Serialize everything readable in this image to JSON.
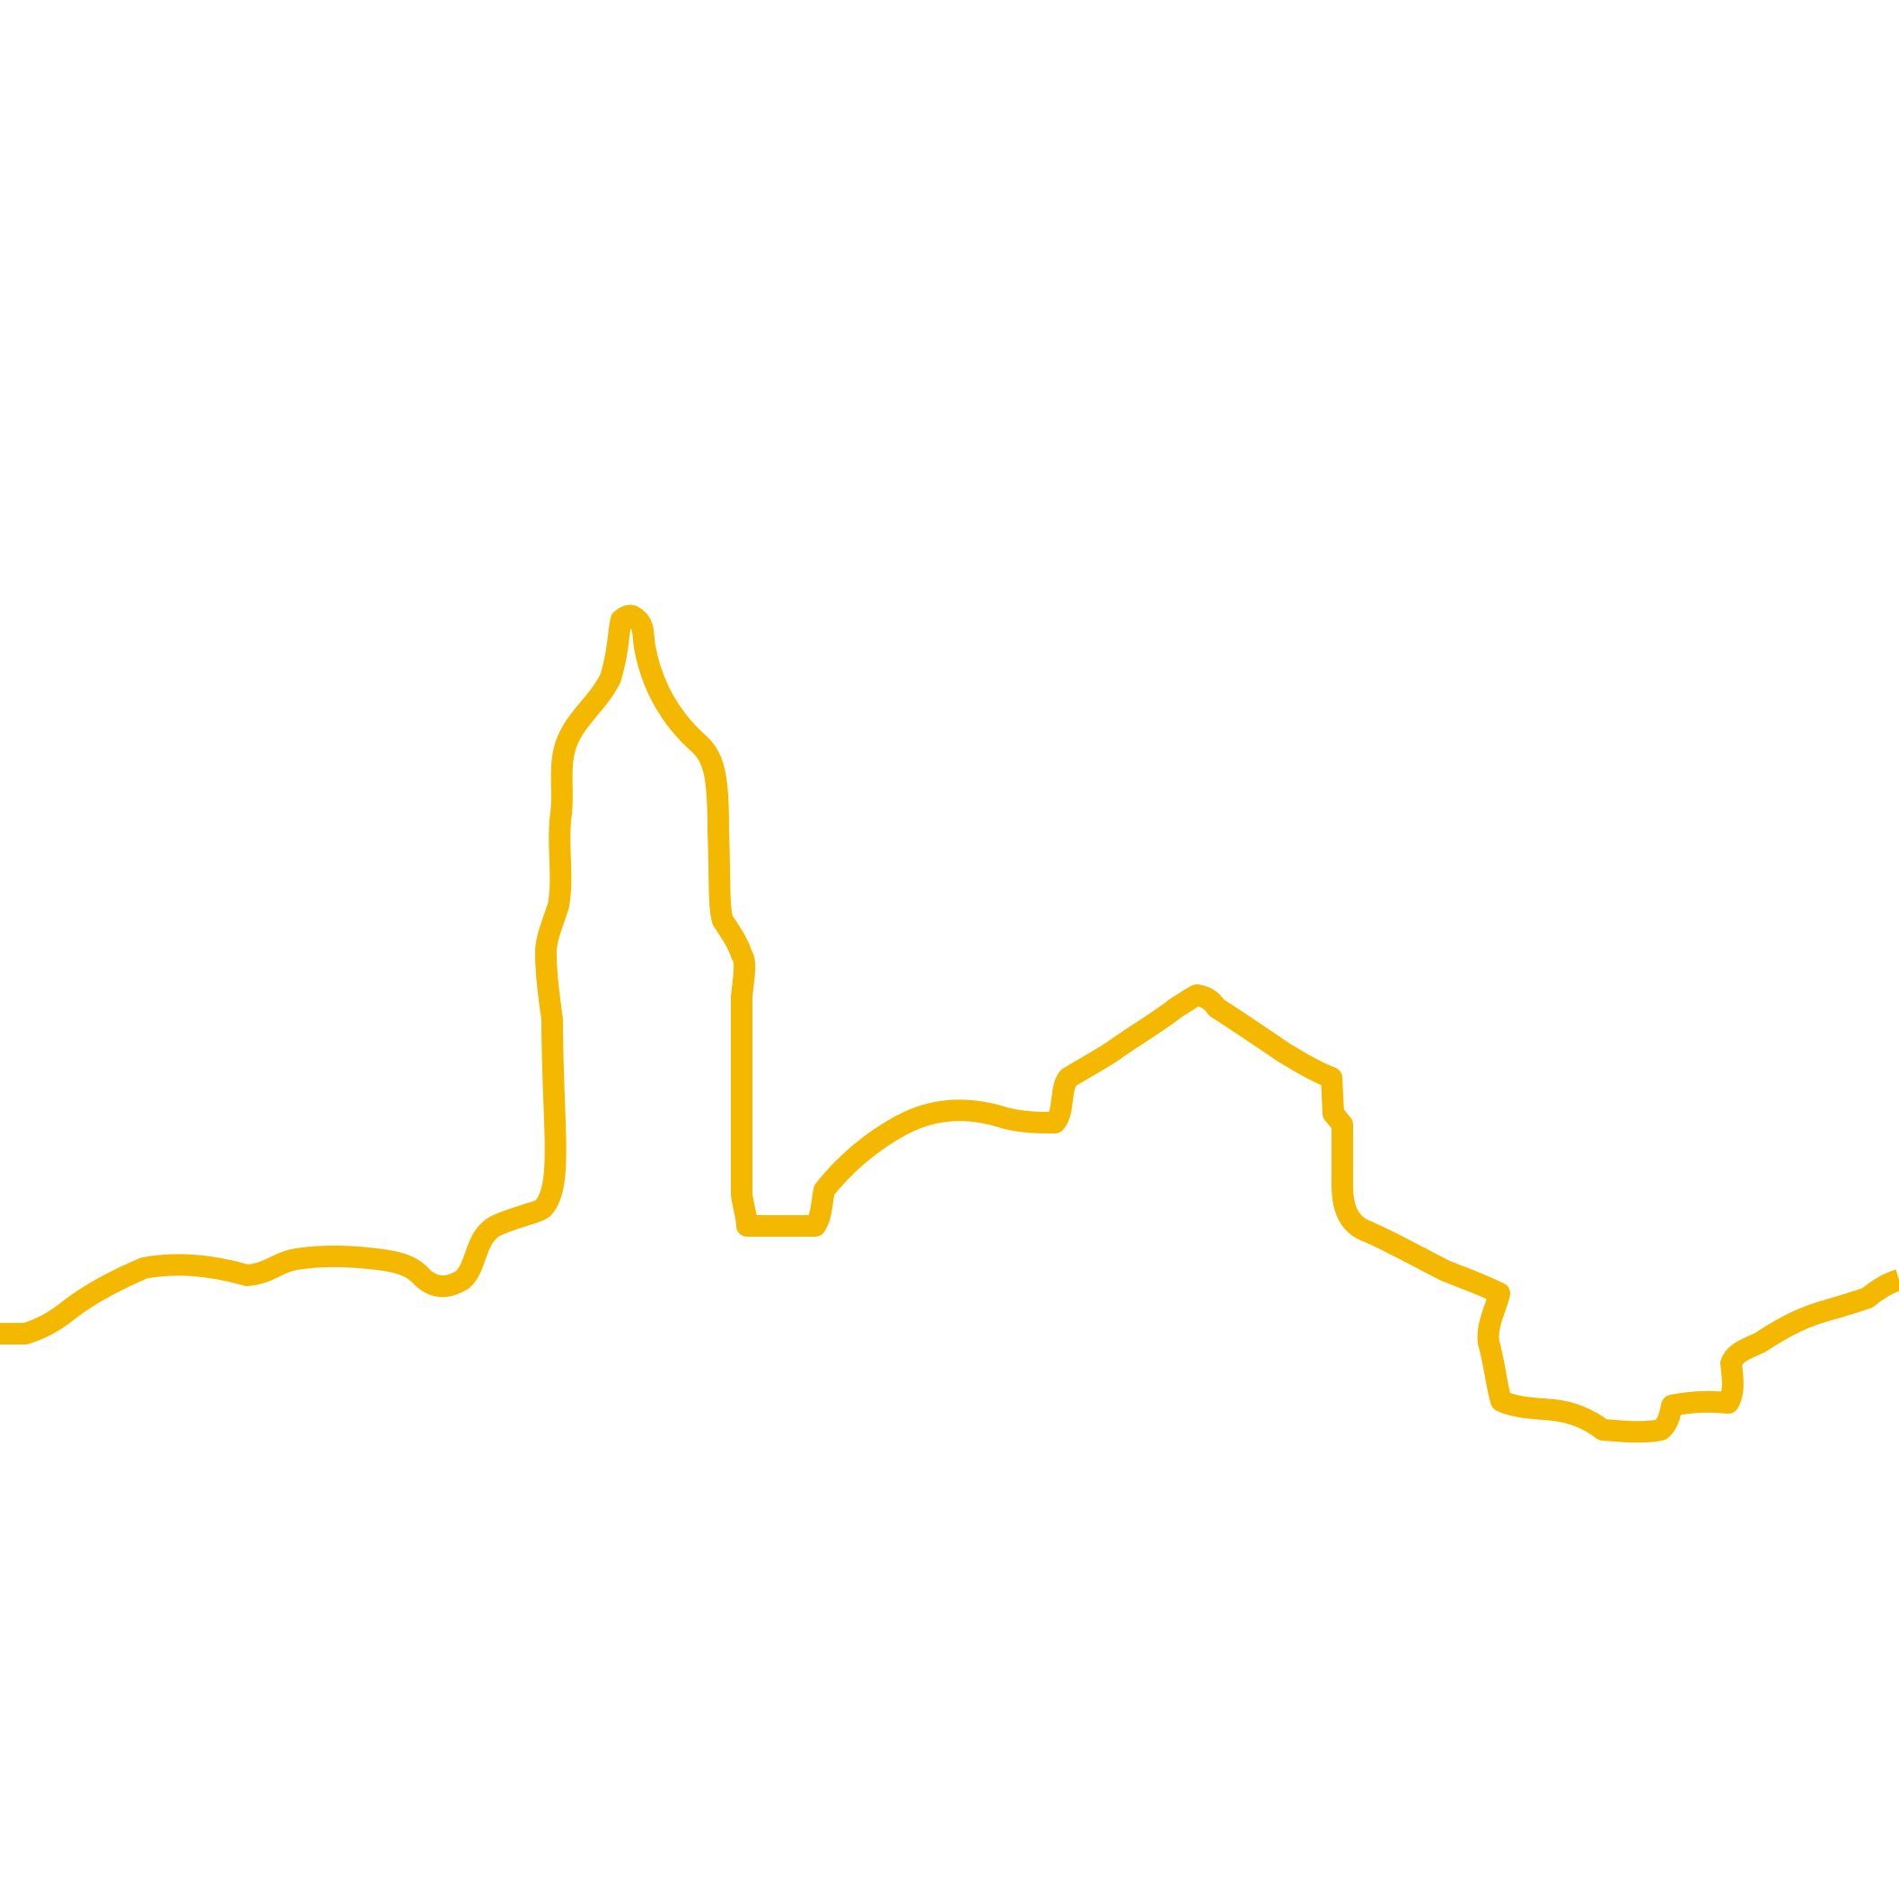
{
  "illustration": {
    "icon": "city-skyline-line-art-icon",
    "stroke_color": "#F4B800",
    "background_color": "#FFFFFF"
  }
}
